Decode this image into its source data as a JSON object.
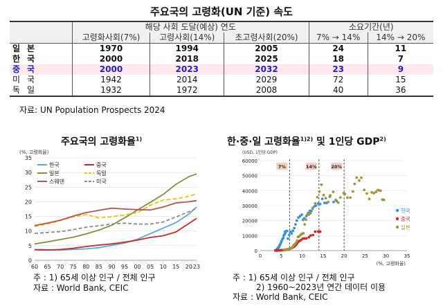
{
  "table": {
    "title": "주요국의 고령화(UN 기준) 속도",
    "header_group1": "해당 사회 도달(예상) 연도",
    "header_group2": "소요기간(년)",
    "sub_headers": [
      "고령화사회(7%)",
      "고령사회(14%)",
      "초고령사회(20%)",
      "7% → 14%",
      "14% → 20%"
    ],
    "rows": [
      {
        "country": "일본",
        "cells": [
          "1970",
          "1994",
          "2005",
          "24",
          "11"
        ]
      },
      {
        "country": "한국",
        "cells": [
          "2000",
          "2018",
          "2025",
          "18",
          "7"
        ]
      },
      {
        "country": "중국",
        "cells": [
          "2000",
          "2023",
          "2032",
          "23",
          "9"
        ]
      },
      {
        "country": "미국",
        "cells": [
          "1942",
          "2014",
          "2029",
          "72",
          "15"
        ]
      },
      {
        "country": "독일",
        "cells": [
          "1932",
          "1972",
          "2008",
          "40",
          "36"
        ]
      }
    ],
    "source": "자료: UN Population Prospects 2024"
  },
  "left_title": {
    "text": "주요국의 고령화율",
    "sup": "1)"
  },
  "right_title": {
    "text": "한·중·일 고령화율",
    "sup1": "1)2)",
    "mid": " 및 1인당 GDP",
    "sup2": "2)"
  },
  "left_notes": {
    "note": "주 : 1) 65세 이상 인구 / 전체 인구",
    "source": "자료 : World Bank, CEIC"
  },
  "right_notes": {
    "note1": "주 : 1) 65세 이상 인구 / 전체 인구",
    "note2": "2) 1960~2023년 연간 데이터 이용",
    "source": "자료 : World Bank, CEIC"
  },
  "chart_data": [
    {
      "type": "line",
      "ylabel": "(%, 고령화율)",
      "ylim": [
        0,
        35
      ],
      "yticks": [
        0,
        5,
        10,
        15,
        20,
        25,
        30,
        35
      ],
      "xlim": [
        1960,
        2023
      ],
      "xticks": [
        1960,
        1965,
        1970,
        1975,
        1980,
        1985,
        1990,
        1995,
        2000,
        2005,
        2010,
        2015,
        2020,
        2023
      ],
      "xtick_labels": [
        "60",
        "65",
        "70",
        "75",
        "80",
        "85",
        "90",
        "95",
        "00",
        "05",
        "10",
        "15",
        "20",
        "23"
      ],
      "grid": true,
      "legend": "top-left",
      "series": [
        {
          "name": "한국",
          "color": "#5aa9e6",
          "dash": "",
          "points": [
            [
              1960,
              3.7
            ],
            [
              1970,
              3.5
            ],
            [
              1980,
              3.9
            ],
            [
              1985,
              4.3
            ],
            [
              1990,
              5.1
            ],
            [
              1995,
              5.9
            ],
            [
              2000,
              7.2
            ],
            [
              2005,
              9.1
            ],
            [
              2010,
              11.0
            ],
            [
              2015,
              12.9
            ],
            [
              2020,
              15.8
            ],
            [
              2023,
              18.2
            ]
          ]
        },
        {
          "name": "중국",
          "color": "#cc2a2a",
          "dash": "",
          "points": [
            [
              1960,
              3.6
            ],
            [
              1965,
              3.5
            ],
            [
              1970,
              3.7
            ],
            [
              1975,
              4.1
            ],
            [
              1980,
              4.7
            ],
            [
              1985,
              5.2
            ],
            [
              1990,
              5.6
            ],
            [
              1995,
              6.2
            ],
            [
              2000,
              6.9
            ],
            [
              2005,
              7.8
            ],
            [
              2010,
              8.4
            ],
            [
              2015,
              9.7
            ],
            [
              2020,
              12.6
            ],
            [
              2023,
              14.3
            ]
          ]
        },
        {
          "name": "일본",
          "color": "#8c8a3c",
          "dash": "",
          "points": [
            [
              1960,
              5.6
            ],
            [
              1965,
              6.3
            ],
            [
              1970,
              7.1
            ],
            [
              1975,
              7.9
            ],
            [
              1980,
              9.0
            ],
            [
              1985,
              10.3
            ],
            [
              1990,
              12.0
            ],
            [
              1995,
              14.5
            ],
            [
              2000,
              17.2
            ],
            [
              2005,
              19.8
            ],
            [
              2010,
              22.5
            ],
            [
              2015,
              26.0
            ],
            [
              2020,
              28.6
            ],
            [
              2023,
              29.5
            ]
          ]
        },
        {
          "name": "독일",
          "color": "#e6c419",
          "dash": "6,3",
          "points": [
            [
              1960,
              11.5
            ],
            [
              1965,
              12.4
            ],
            [
              1970,
              13.6
            ],
            [
              1975,
              14.8
            ],
            [
              1980,
              15.6
            ],
            [
              1985,
              14.5
            ],
            [
              1990,
              14.9
            ],
            [
              1995,
              15.5
            ],
            [
              2000,
              16.3
            ],
            [
              2005,
              18.8
            ],
            [
              2010,
              20.6
            ],
            [
              2015,
              21.0
            ],
            [
              2020,
              21.9
            ],
            [
              2023,
              22.7
            ]
          ]
        },
        {
          "name": "스웨덴",
          "color": "#b85450",
          "dash": "",
          "points": [
            [
              1960,
              11.9
            ],
            [
              1965,
              12.7
            ],
            [
              1970,
              13.7
            ],
            [
              1975,
              15.1
            ],
            [
              1980,
              16.3
            ],
            [
              1985,
              17.1
            ],
            [
              1990,
              17.8
            ],
            [
              1995,
              17.5
            ],
            [
              2000,
              17.3
            ],
            [
              2005,
              17.2
            ],
            [
              2010,
              18.2
            ],
            [
              2015,
              19.6
            ],
            [
              2020,
              20.0
            ],
            [
              2023,
              20.4
            ]
          ]
        },
        {
          "name": "미국",
          "color": "#8a8a8a",
          "dash": "5,3",
          "points": [
            [
              1960,
              9.2
            ],
            [
              1965,
              9.5
            ],
            [
              1970,
              9.8
            ],
            [
              1975,
              10.5
            ],
            [
              1980,
              11.3
            ],
            [
              1985,
              11.8
            ],
            [
              1990,
              12.4
            ],
            [
              1995,
              12.7
            ],
            [
              2000,
              12.4
            ],
            [
              2005,
              12.4
            ],
            [
              2010,
              13.1
            ],
            [
              2015,
              14.8
            ],
            [
              2020,
              16.6
            ],
            [
              2023,
              17.7
            ]
          ]
        }
      ]
    },
    {
      "type": "scatter",
      "ylabel": "(USD, 1인당 GDP)",
      "xlabel": "(%, 고령화율)",
      "ylim": [
        0,
        60000
      ],
      "yticks": [
        0,
        10000,
        20000,
        30000,
        40000,
        50000,
        60000
      ],
      "xlim": [
        0,
        35
      ],
      "xticks": [
        0,
        5,
        10,
        15,
        20,
        25,
        30,
        35
      ],
      "grid": true,
      "legend": "right",
      "thresholds": [
        {
          "x": 7,
          "label": "7%"
        },
        {
          "x": 14,
          "label": "14%"
        },
        {
          "x": 20,
          "label": "20%"
        }
      ],
      "series": [
        {
          "name": "한국",
          "color": "#3a8fd6",
          "points": [
            [
              3.6,
              158
            ],
            [
              3.7,
              200
            ],
            [
              3.8,
              280
            ],
            [
              3.9,
              600
            ],
            [
              4.0,
              1000
            ],
            [
              4.1,
              1300
            ],
            [
              4.2,
              1700
            ],
            [
              4.3,
              1800
            ],
            [
              4.4,
              2300
            ],
            [
              4.5,
              2700
            ],
            [
              4.6,
              3500
            ],
            [
              4.8,
              4500
            ],
            [
              5.0,
              5700
            ],
            [
              5.1,
              6500
            ],
            [
              5.3,
              7700
            ],
            [
              5.5,
              8500
            ],
            [
              5.6,
              10000
            ],
            [
              5.8,
              11000
            ],
            [
              5.9,
              12500
            ],
            [
              6.0,
              12000
            ],
            [
              6.2,
              13000
            ],
            [
              6.4,
              13100
            ],
            [
              6.6,
              8000
            ],
            [
              6.9,
              10500
            ],
            [
              7.2,
              12500
            ],
            [
              7.5,
              11500
            ],
            [
              7.8,
              13200
            ],
            [
              8.1,
              15000
            ],
            [
              8.4,
              17500
            ],
            [
              8.7,
              20000
            ],
            [
              9.1,
              22000
            ],
            [
              9.5,
              23000
            ],
            [
              9.9,
              24000
            ],
            [
              10.2,
              20500
            ],
            [
              10.5,
              21500
            ],
            [
              11.0,
              23000
            ],
            [
              11.4,
              25000
            ],
            [
              11.8,
              26500
            ],
            [
              12.2,
              26500
            ],
            [
              12.5,
              28000
            ],
            [
              12.9,
              29500
            ],
            [
              13.3,
              30000
            ],
            [
              13.8,
              31500
            ],
            [
              14.3,
              31000
            ],
            [
              14.8,
              34500
            ],
            [
              15.3,
              31800
            ],
            [
              15.8,
              31700
            ],
            [
              16.6,
              36000
            ],
            [
              17.5,
              32400
            ],
            [
              18.2,
              33100
            ]
          ]
        },
        {
          "name": "중국",
          "color": "#cc2a2a",
          "points": [
            [
              3.6,
              90
            ],
            [
              3.7,
              75
            ],
            [
              3.8,
              90
            ],
            [
              3.9,
              110
            ],
            [
              4.1,
              120
            ],
            [
              4.3,
              160
            ],
            [
              4.5,
              200
            ],
            [
              4.7,
              200
            ],
            [
              4.9,
              250
            ],
            [
              5.1,
              300
            ],
            [
              5.3,
              290
            ],
            [
              5.5,
              330
            ],
            [
              5.6,
              320
            ],
            [
              5.8,
              350
            ],
            [
              5.9,
              470
            ],
            [
              6.1,
              610
            ],
            [
              6.3,
              700
            ],
            [
              6.5,
              800
            ],
            [
              6.7,
              950
            ],
            [
              6.9,
              1050
            ],
            [
              7.1,
              1300
            ],
            [
              7.3,
              1500
            ],
            [
              7.5,
              1750
            ],
            [
              7.8,
              2100
            ],
            [
              8.1,
              2700
            ],
            [
              8.4,
              3500
            ],
            [
              8.7,
              4500
            ],
            [
              9.0,
              5600
            ],
            [
              9.3,
              6300
            ],
            [
              9.7,
              7000
            ],
            [
              10.1,
              7900
            ],
            [
              10.5,
              8100
            ],
            [
              11.0,
              8100
            ],
            [
              11.6,
              8900
            ],
            [
              12.0,
              10000
            ],
            [
              12.6,
              10400
            ],
            [
              13.1,
              12600
            ],
            [
              13.8,
              12700
            ],
            [
              14.3,
              12600
            ]
          ]
        },
        {
          "name": "일본",
          "color": "#a3953a",
          "points": [
            [
              5.6,
              480
            ],
            [
              5.8,
              560
            ],
            [
              6.0,
              630
            ],
            [
              6.2,
              720
            ],
            [
              6.4,
              840
            ],
            [
              6.6,
              920
            ],
            [
              6.9,
              1070
            ],
            [
              7.1,
              1250
            ],
            [
              7.3,
              1600
            ],
            [
              7.6,
              2000
            ],
            [
              7.8,
              2700
            ],
            [
              8.0,
              3700
            ],
            [
              8.2,
              4200
            ],
            [
              8.5,
              5200
            ],
            [
              8.8,
              6700
            ],
            [
              9.0,
              9100
            ],
            [
              9.3,
              9500
            ],
            [
              9.6,
              10400
            ],
            [
              9.8,
              11000
            ],
            [
              10.1,
              11500
            ],
            [
              10.3,
              11500
            ],
            [
              10.6,
              17500
            ],
            [
              10.9,
              20700
            ],
            [
              11.2,
              23800
            ],
            [
              11.6,
              24000
            ],
            [
              12.0,
              25000
            ],
            [
              12.5,
              28500
            ],
            [
              13.1,
              31500
            ],
            [
              13.6,
              35700
            ],
            [
              14.1,
              39300
            ],
            [
              14.6,
              44000
            ],
            [
              15.1,
              37000
            ],
            [
              15.6,
              35000
            ],
            [
              16.2,
              32400
            ],
            [
              16.7,
              36800
            ],
            [
              17.4,
              39200
            ],
            [
              18.0,
              33800
            ],
            [
              18.6,
              32000
            ],
            [
              19.1,
              35400
            ],
            [
              19.9,
              38300
            ],
            [
              20.2,
              37800
            ],
            [
              20.8,
              35300
            ],
            [
              21.5,
              35300
            ],
            [
              22.1,
              39400
            ],
            [
              22.5,
              44500
            ],
            [
              23.0,
              48700
            ],
            [
              23.6,
              46700
            ],
            [
              24.1,
              48600
            ],
            [
              24.8,
              40500
            ],
            [
              25.4,
              38100
            ],
            [
              26.0,
              34500
            ],
            [
              26.6,
              38800
            ],
            [
              27.1,
              38300
            ],
            [
              27.6,
              39100
            ],
            [
              28.0,
              40400
            ],
            [
              28.4,
              40100
            ],
            [
              28.7,
              39900
            ],
            [
              29.1,
              34000
            ],
            [
              29.5,
              33800
            ]
          ]
        }
      ]
    }
  ]
}
